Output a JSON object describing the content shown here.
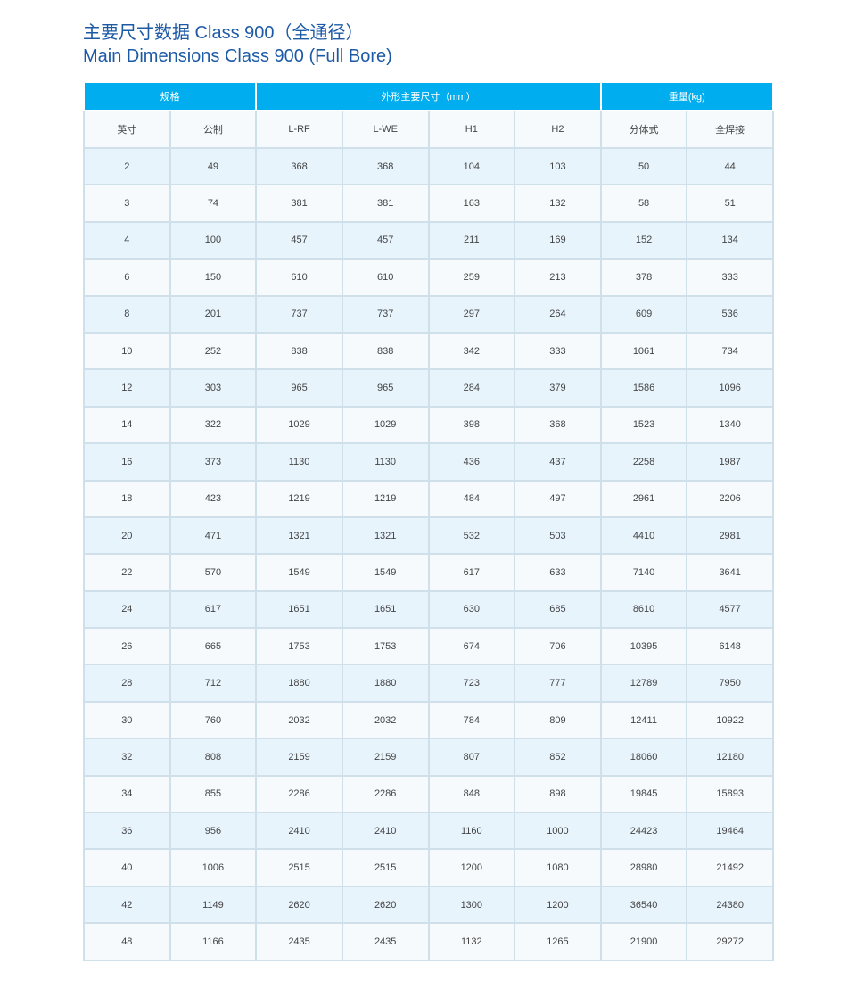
{
  "title": {
    "cn": "主要尺寸数据 Class 900（全通径）",
    "en": "Main Dimensions Class 900 (Full Bore)"
  },
  "colors": {
    "header": "#00aeef",
    "title": "#1d5aa6",
    "row_alt": "#e8f4fc",
    "border": "#cfe0ea"
  },
  "table": {
    "groups": [
      "规格",
      "外形主要尺寸（mm）",
      "重量(kg)"
    ],
    "columns": [
      "英寸",
      "公制",
      "L-RF",
      "L-WE",
      "H1",
      "H2",
      "分体式",
      "全焊接"
    ],
    "rows": [
      [
        "2",
        "49",
        "368",
        "368",
        "104",
        "103",
        "50",
        "44"
      ],
      [
        "3",
        "74",
        "381",
        "381",
        "163",
        "132",
        "58",
        "51"
      ],
      [
        "4",
        "100",
        "457",
        "457",
        "211",
        "169",
        "152",
        "134"
      ],
      [
        "6",
        "150",
        "610",
        "610",
        "259",
        "213",
        "378",
        "333"
      ],
      [
        "8",
        "201",
        "737",
        "737",
        "297",
        "264",
        "609",
        "536"
      ],
      [
        "10",
        "252",
        "838",
        "838",
        "342",
        "333",
        "1061",
        "734"
      ],
      [
        "12",
        "303",
        "965",
        "965",
        "284",
        "379",
        "1586",
        "1096"
      ],
      [
        "14",
        "322",
        "1029",
        "1029",
        "398",
        "368",
        "1523",
        "1340"
      ],
      [
        "16",
        "373",
        "1130",
        "1130",
        "436",
        "437",
        "2258",
        "1987"
      ],
      [
        "18",
        "423",
        "1219",
        "1219",
        "484",
        "497",
        "2961",
        "2206"
      ],
      [
        "20",
        "471",
        "1321",
        "1321",
        "532",
        "503",
        "4410",
        "2981"
      ],
      [
        "22",
        "570",
        "1549",
        "1549",
        "617",
        "633",
        "7140",
        "3641"
      ],
      [
        "24",
        "617",
        "1651",
        "1651",
        "630",
        "685",
        "8610",
        "4577"
      ],
      [
        "26",
        "665",
        "1753",
        "1753",
        "674",
        "706",
        "10395",
        "6148"
      ],
      [
        "28",
        "712",
        "1880",
        "1880",
        "723",
        "777",
        "12789",
        "7950"
      ],
      [
        "30",
        "760",
        "2032",
        "2032",
        "784",
        "809",
        "12411",
        "10922"
      ],
      [
        "32",
        "808",
        "2159",
        "2159",
        "807",
        "852",
        "18060",
        "12180"
      ],
      [
        "34",
        "855",
        "2286",
        "2286",
        "848",
        "898",
        "19845",
        "15893"
      ],
      [
        "36",
        "956",
        "2410",
        "2410",
        "1160",
        "1000",
        "24423",
        "19464"
      ],
      [
        "40",
        "1006",
        "2515",
        "2515",
        "1200",
        "1080",
        "28980",
        "21492"
      ],
      [
        "42",
        "1149",
        "2620",
        "2620",
        "1300",
        "1200",
        "36540",
        "24380"
      ],
      [
        "48",
        "1166",
        "2435",
        "2435",
        "1132",
        "1265",
        "21900",
        "29272"
      ]
    ]
  }
}
